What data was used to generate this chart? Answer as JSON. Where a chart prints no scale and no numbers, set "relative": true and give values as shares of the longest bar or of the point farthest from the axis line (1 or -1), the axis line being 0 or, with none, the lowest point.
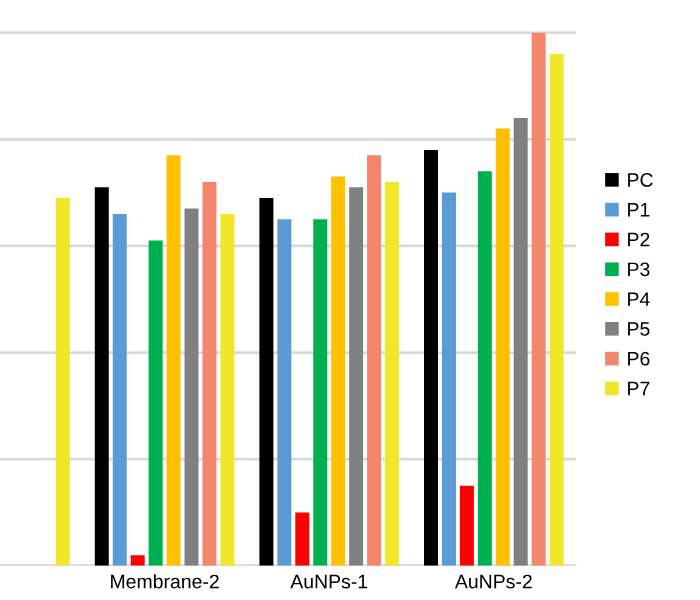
{
  "chart_data": {
    "type": "bar",
    "relative": true,
    "grid": "y",
    "legend": "right",
    "categories": [
      null,
      "Membrane-2",
      "AuNPs-1",
      "AuNPs-2"
    ],
    "series": [
      {
        "name": "PC",
        "color": "#000000",
        "values": [
          null,
          0.71,
          0.69,
          0.78
        ]
      },
      {
        "name": "P1",
        "color": "#5b9bd5",
        "values": [
          null,
          0.66,
          0.65,
          0.7
        ]
      },
      {
        "name": "P2",
        "color": "#ff0000",
        "values": [
          null,
          0.02,
          0.1,
          0.15
        ]
      },
      {
        "name": "P3",
        "color": "#00b050",
        "values": [
          null,
          0.61,
          0.65,
          0.74
        ]
      },
      {
        "name": "P4",
        "color": "#ffc000",
        "values": [
          null,
          0.77,
          0.73,
          0.82
        ]
      },
      {
        "name": "P5",
        "color": "#808080",
        "values": [
          null,
          0.67,
          0.71,
          0.84
        ]
      },
      {
        "name": "P6",
        "color": "#f4876b",
        "values": [
          null,
          0.72,
          0.77,
          1
        ]
      },
      {
        "name": "P7",
        "color": "#f2e62a",
        "values": [
          0.69,
          0.66,
          0.72,
          0.96
        ]
      }
    ]
  }
}
